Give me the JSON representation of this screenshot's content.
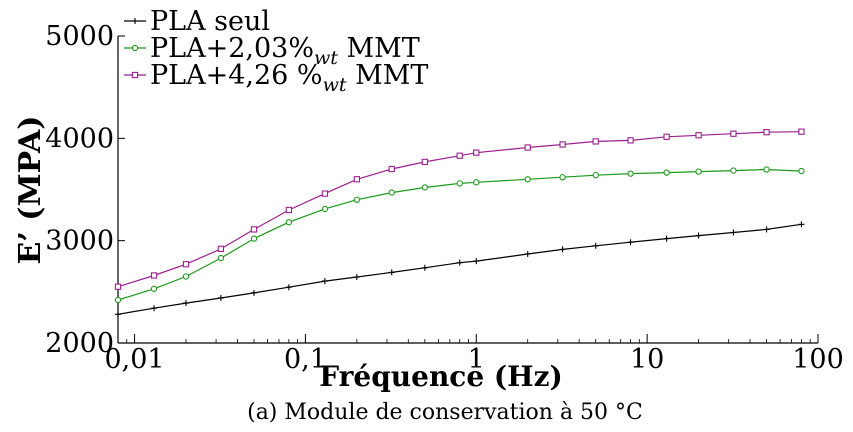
{
  "chart_data": {
    "type": "line",
    "xscale": "log",
    "xlim": [
      0.008,
      100
    ],
    "ylim": [
      2000,
      5000
    ],
    "xlabel": "Fréquence (Hz)",
    "ylabel": "E’ (MPA)",
    "caption": "(a) Module de conservation à 50 °C",
    "xticks": [
      {
        "value": 0.01,
        "label": "0,01"
      },
      {
        "value": 0.1,
        "label": "0,1"
      },
      {
        "value": 1,
        "label": "1"
      },
      {
        "value": 10,
        "label": "10"
      },
      {
        "value": 100,
        "label": "100"
      }
    ],
    "yticks": [
      {
        "value": 2000,
        "label": "2000"
      },
      {
        "value": 3000,
        "label": "3000"
      },
      {
        "value": 4000,
        "label": "4000"
      },
      {
        "value": 5000,
        "label": "5000"
      }
    ],
    "legend_position": "top-left",
    "series": [
      {
        "name": "PLA seul",
        "legend_main": "PLA seul",
        "legend_sub": "",
        "legend_tail": "",
        "color": "#000000",
        "marker": "plus",
        "x": [
          0.008,
          0.013,
          0.02,
          0.032,
          0.05,
          0.08,
          0.13,
          0.2,
          0.32,
          0.5,
          0.8,
          1,
          2,
          3.2,
          5,
          8,
          13,
          20,
          32,
          50,
          80
        ],
        "values": [
          2280,
          2340,
          2390,
          2440,
          2490,
          2545,
          2605,
          2645,
          2690,
          2735,
          2785,
          2800,
          2870,
          2915,
          2950,
          2985,
          3020,
          3050,
          3080,
          3110,
          3160
        ]
      },
      {
        "name": "PLA+2,03%wt MMT",
        "legend_main": "PLA+2,03%",
        "legend_sub": "wt",
        "legend_tail": " MMT",
        "color": "#1a9a1a",
        "marker": "circle",
        "x": [
          0.008,
          0.013,
          0.02,
          0.032,
          0.05,
          0.08,
          0.13,
          0.2,
          0.32,
          0.5,
          0.8,
          1,
          2,
          3.2,
          5,
          8,
          13,
          20,
          32,
          50,
          80
        ],
        "values": [
          2420,
          2530,
          2650,
          2830,
          3020,
          3180,
          3310,
          3400,
          3470,
          3520,
          3560,
          3570,
          3600,
          3620,
          3640,
          3655,
          3665,
          3675,
          3685,
          3695,
          3680
        ]
      },
      {
        "name": "PLA+4,26 %wt MMT",
        "legend_main": "PLA+4,26 %",
        "legend_sub": "wt",
        "legend_tail": " MMT",
        "color": "#9c1f8f",
        "marker": "square",
        "x": [
          0.008,
          0.013,
          0.02,
          0.032,
          0.05,
          0.08,
          0.13,
          0.2,
          0.32,
          0.5,
          0.8,
          1,
          2,
          3.2,
          5,
          8,
          13,
          20,
          32,
          50,
          80
        ],
        "values": [
          2550,
          2660,
          2770,
          2920,
          3110,
          3300,
          3460,
          3600,
          3700,
          3770,
          3830,
          3860,
          3910,
          3940,
          3970,
          3980,
          4015,
          4030,
          4045,
          4060,
          4065
        ]
      }
    ]
  }
}
